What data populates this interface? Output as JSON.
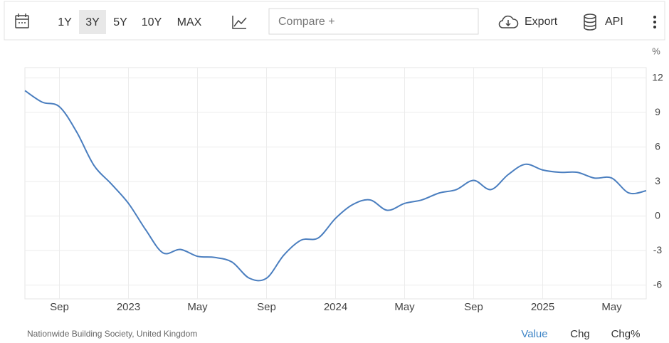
{
  "toolbar": {
    "ranges": [
      "1Y",
      "3Y",
      "5Y",
      "10Y",
      "MAX"
    ],
    "compare": "Compare +",
    "export": "Export",
    "api": "API"
  },
  "chart_data": {
    "type": "line",
    "y_unit": "%",
    "x": [
      "2022-07",
      "2022-08",
      "2022-09",
      "2022-10",
      "2022-11",
      "2022-12",
      "2023-01",
      "2023-02",
      "2023-03",
      "2023-04",
      "2023-05",
      "2023-06",
      "2023-07",
      "2023-08",
      "2023-09",
      "2023-10",
      "2023-11",
      "2023-12",
      "2024-01",
      "2024-02",
      "2024-03",
      "2024-04",
      "2024-05",
      "2024-06",
      "2024-07",
      "2024-08",
      "2024-09",
      "2024-10",
      "2024-11",
      "2024-12",
      "2025-01",
      "2025-02",
      "2025-03",
      "2025-04",
      "2025-05",
      "2025-06",
      "2025-07"
    ],
    "series": [
      {
        "name": "Value",
        "color": "#4a7ebf",
        "values": [
          10.9,
          9.9,
          9.5,
          7.3,
          4.4,
          2.8,
          1.1,
          -1.2,
          -3.2,
          -2.9,
          -3.5,
          -3.6,
          -4.0,
          -5.4,
          -5.4,
          -3.4,
          -2.1,
          -1.9,
          -0.2,
          1.0,
          1.4,
          0.5,
          1.1,
          1.4,
          2.0,
          2.3,
          3.1,
          2.3,
          3.6,
          4.5,
          4.0,
          3.8,
          3.8,
          3.3,
          3.3,
          2.0,
          2.2
        ]
      }
    ],
    "xlim": [
      "2022-07",
      "2025-07"
    ],
    "xticks": [
      {
        "value": "2022-09",
        "label": "Sep"
      },
      {
        "value": "2023-01",
        "label": "2023"
      },
      {
        "value": "2023-05",
        "label": "May"
      },
      {
        "value": "2023-09",
        "label": "Sep"
      },
      {
        "value": "2024-01",
        "label": "2024"
      },
      {
        "value": "2024-05",
        "label": "May"
      },
      {
        "value": "2024-09",
        "label": "Sep"
      },
      {
        "value": "2025-01",
        "label": "2025"
      },
      {
        "value": "2025-05",
        "label": "May"
      }
    ],
    "ylim": [
      -7.2,
      12.9
    ],
    "yticks": [
      12,
      9,
      6,
      3,
      0,
      -3,
      -6
    ],
    "grid": true
  },
  "footer": {
    "source": "Nationwide Building Society, United Kingdom",
    "tabs": [
      "Value",
      "Chg",
      "Chg%"
    ]
  }
}
